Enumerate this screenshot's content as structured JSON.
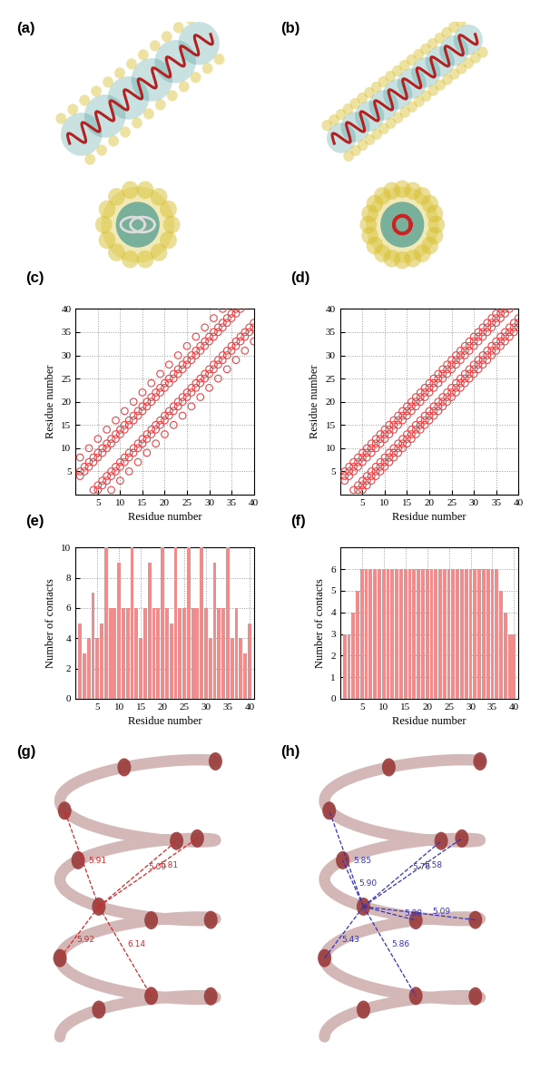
{
  "chart_data": [
    {
      "type": "scatter",
      "title": "(c)",
      "x_label": "Residue number",
      "y_label": "Residue number",
      "marker": "circle_open",
      "color": "#e8474a",
      "grid": true,
      "xlim": [
        0,
        40
      ],
      "ylim": [
        0,
        40
      ],
      "xticks": [
        5,
        10,
        15,
        20,
        25,
        30,
        35,
        40
      ],
      "yticks": [
        5,
        10,
        15,
        20,
        25,
        30,
        35,
        40
      ],
      "x": [
        1,
        2,
        3,
        4,
        5,
        6,
        7,
        8,
        9,
        10,
        11,
        12,
        13,
        14,
        15,
        16,
        17,
        18,
        19,
        20,
        21,
        22,
        23,
        24,
        25,
        26,
        27,
        28,
        29,
        30,
        31,
        32,
        33,
        34,
        35,
        36,
        37,
        38,
        39,
        40
      ],
      "contacts": [
        [
          4,
          5,
          8
        ],
        [
          5,
          6
        ],
        [
          6,
          7,
          10
        ],
        [
          1,
          7,
          8
        ],
        [
          1,
          2,
          8,
          9,
          12
        ],
        [
          2,
          3,
          9,
          10
        ],
        [
          3,
          4,
          10,
          11,
          14
        ],
        [
          1,
          4,
          5,
          11,
          12
        ],
        [
          5,
          6,
          12,
          13,
          16
        ],
        [
          3,
          6,
          7,
          13,
          14
        ],
        [
          7,
          8,
          14,
          15,
          18
        ],
        [
          5,
          8,
          9,
          15,
          16
        ],
        [
          9,
          10,
          16,
          17,
          20
        ],
        [
          7,
          10,
          11,
          17,
          18
        ],
        [
          11,
          12,
          18,
          19,
          22
        ],
        [
          9,
          12,
          13,
          19,
          20
        ],
        [
          13,
          14,
          20,
          21,
          24
        ],
        [
          11,
          14,
          15,
          21,
          22
        ],
        [
          15,
          16,
          22,
          23,
          26
        ],
        [
          13,
          16,
          17,
          23,
          24
        ],
        [
          17,
          18,
          24,
          25,
          28
        ],
        [
          15,
          18,
          19,
          25,
          26
        ],
        [
          19,
          20,
          26,
          27,
          30
        ],
        [
          17,
          20,
          21,
          27,
          28
        ],
        [
          21,
          22,
          28,
          29,
          32
        ],
        [
          19,
          22,
          23,
          29,
          30
        ],
        [
          23,
          24,
          30,
          31,
          34
        ],
        [
          21,
          24,
          25,
          31,
          32
        ],
        [
          25,
          26,
          32,
          33,
          36
        ],
        [
          23,
          26,
          27,
          33,
          34
        ],
        [
          27,
          28,
          34,
          35,
          38
        ],
        [
          25,
          28,
          29,
          35,
          36
        ],
        [
          29,
          30,
          36,
          37,
          40
        ],
        [
          27,
          30,
          31,
          37,
          38
        ],
        [
          31,
          32,
          38,
          39
        ],
        [
          29,
          32,
          33,
          39,
          40
        ],
        [
          33,
          34,
          40
        ],
        [
          31,
          34,
          35
        ],
        [
          35,
          36
        ],
        [
          33,
          36,
          37
        ]
      ]
    },
    {
      "type": "scatter",
      "title": "(d)",
      "x_label": "Residue number",
      "y_label": "Residue number",
      "marker": "circle_open",
      "color": "#e8474a",
      "grid": true,
      "xlim": [
        0,
        40
      ],
      "ylim": [
        0,
        40
      ],
      "xticks": [
        5,
        10,
        15,
        20,
        25,
        30,
        35,
        40
      ],
      "yticks": [
        5,
        10,
        15,
        20,
        25,
        30,
        35,
        40
      ],
      "x": [
        1,
        2,
        3,
        4,
        5,
        6,
        7,
        8,
        9,
        10,
        11,
        12,
        13,
        14,
        15,
        16,
        17,
        18,
        19,
        20,
        21,
        22,
        23,
        24,
        25,
        26,
        27,
        28,
        29,
        30,
        31,
        32,
        33,
        34,
        35,
        36,
        37,
        38,
        39,
        40
      ],
      "contacts": [
        [
          3,
          4,
          5
        ],
        [
          4,
          5,
          6
        ],
        [
          1,
          5,
          6,
          7
        ],
        [
          1,
          2,
          6,
          7,
          8
        ],
        [
          1,
          2,
          3,
          7,
          8,
          9
        ],
        [
          2,
          3,
          4,
          8,
          9,
          10
        ],
        [
          3,
          4,
          5,
          9,
          10,
          11
        ],
        [
          4,
          5,
          6,
          10,
          11,
          12
        ],
        [
          5,
          6,
          7,
          11,
          12,
          13
        ],
        [
          6,
          7,
          8,
          12,
          13,
          14
        ],
        [
          7,
          8,
          9,
          13,
          14,
          15
        ],
        [
          8,
          9,
          10,
          14,
          15,
          16
        ],
        [
          9,
          10,
          11,
          15,
          16,
          17
        ],
        [
          10,
          11,
          12,
          16,
          17,
          18
        ],
        [
          11,
          12,
          13,
          17,
          18,
          19
        ],
        [
          12,
          13,
          14,
          18,
          19,
          20
        ],
        [
          13,
          14,
          15,
          19,
          20,
          21
        ],
        [
          14,
          15,
          16,
          20,
          21,
          22
        ],
        [
          15,
          16,
          17,
          21,
          22,
          23
        ],
        [
          16,
          17,
          18,
          22,
          23,
          24
        ],
        [
          17,
          18,
          19,
          23,
          24,
          25
        ],
        [
          18,
          19,
          20,
          24,
          25,
          26
        ],
        [
          19,
          20,
          21,
          25,
          26,
          27
        ],
        [
          20,
          21,
          22,
          26,
          27,
          28
        ],
        [
          21,
          22,
          23,
          27,
          28,
          29
        ],
        [
          22,
          23,
          24,
          28,
          29,
          30
        ],
        [
          23,
          24,
          25,
          29,
          30,
          31
        ],
        [
          24,
          25,
          26,
          30,
          31,
          32
        ],
        [
          25,
          26,
          27,
          31,
          32,
          33
        ],
        [
          26,
          27,
          28,
          32,
          33,
          34
        ],
        [
          27,
          28,
          29,
          33,
          34,
          35
        ],
        [
          28,
          29,
          30,
          34,
          35,
          36
        ],
        [
          29,
          30,
          31,
          35,
          36,
          37
        ],
        [
          30,
          31,
          32,
          36,
          37,
          38
        ],
        [
          31,
          32,
          33,
          37,
          38,
          39
        ],
        [
          32,
          33,
          34,
          38,
          39,
          40
        ],
        [
          33,
          34,
          35,
          39,
          40
        ],
        [
          34,
          35,
          36,
          40
        ],
        [
          35,
          36,
          37
        ],
        [
          36,
          37,
          38
        ]
      ]
    },
    {
      "type": "bar",
      "title": "(e)",
      "x_label": "Residue number",
      "y_label": "Number of contacts",
      "color": "#f28b8c",
      "grid": true,
      "xlim": [
        0,
        41
      ],
      "ylim": [
        0,
        10
      ],
      "xticks": [
        5,
        10,
        15,
        20,
        25,
        30,
        35,
        40
      ],
      "yticks": [
        0,
        2,
        4,
        6,
        8,
        10
      ],
      "x": [
        1,
        2,
        3,
        4,
        5,
        6,
        7,
        8,
        9,
        10,
        11,
        12,
        13,
        14,
        15,
        16,
        17,
        18,
        19,
        20,
        21,
        22,
        23,
        24,
        25,
        26,
        27,
        28,
        29,
        30,
        31,
        32,
        33,
        34,
        35,
        36,
        37,
        38,
        39,
        40
      ],
      "values": [
        5,
        3,
        4,
        7,
        4,
        5,
        10,
        6,
        6,
        9,
        6,
        6,
        10,
        6,
        4,
        6,
        9,
        6,
        6,
        10,
        6,
        5,
        10,
        6,
        6,
        10,
        6,
        6,
        10,
        6,
        4,
        9,
        6,
        6,
        10,
        4,
        6,
        4,
        3,
        5
      ]
    },
    {
      "type": "bar",
      "title": "(f)",
      "x_label": "Residue number",
      "y_label": "Number of contacts",
      "color": "#f28b8c",
      "grid": true,
      "xlim": [
        0,
        41
      ],
      "ylim": [
        0,
        7
      ],
      "xticks": [
        5,
        10,
        15,
        20,
        25,
        30,
        35,
        40
      ],
      "yticks": [
        0,
        1,
        2,
        3,
        4,
        5,
        6
      ],
      "x": [
        1,
        2,
        3,
        4,
        5,
        6,
        7,
        8,
        9,
        10,
        11,
        12,
        13,
        14,
        15,
        16,
        17,
        18,
        19,
        20,
        21,
        22,
        23,
        24,
        25,
        26,
        27,
        28,
        29,
        30,
        31,
        32,
        33,
        34,
        35,
        36,
        37,
        38,
        39,
        40
      ],
      "values": [
        3,
        3,
        4,
        5,
        6,
        6,
        6,
        6,
        6,
        6,
        6,
        6,
        6,
        6,
        6,
        6,
        6,
        6,
        6,
        6,
        6,
        6,
        6,
        6,
        6,
        6,
        6,
        6,
        6,
        6,
        6,
        6,
        6,
        6,
        6,
        6,
        5,
        4,
        3,
        3
      ]
    }
  ],
  "renders": [
    {
      "label": "(a)"
    },
    {
      "label": "(b)"
    },
    {
      "label": "(g)",
      "color": "#d62728",
      "distance_labels": [
        "5.91",
        "5.09",
        "5.92",
        "6.14",
        "5.81"
      ]
    },
    {
      "label": "(h)",
      "color": "#3333bb",
      "distance_labels": [
        "5.85",
        "5.76",
        "5.43",
        "5.86",
        "5.58",
        "5.88",
        "5.90",
        "5.09"
      ]
    }
  ]
}
